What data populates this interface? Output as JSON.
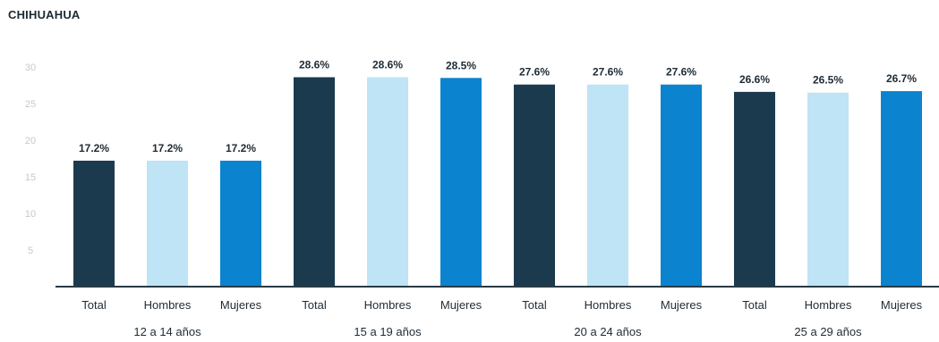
{
  "chart_data": {
    "type": "bar",
    "title": "CHIHUAHUA",
    "xlabel": "",
    "ylabel": "",
    "ylim": [
      0,
      30
    ],
    "yticks": [
      5,
      10,
      15,
      20,
      25,
      30
    ],
    "grid": false,
    "legend": "none",
    "groups": [
      {
        "label": "12 a 14 años",
        "bars": [
          {
            "category": "Total",
            "value": 17.2,
            "label": "17.2%"
          },
          {
            "category": "Hombres",
            "value": 17.2,
            "label": "17.2%"
          },
          {
            "category": "Mujeres",
            "value": 17.2,
            "label": "17.2%"
          }
        ]
      },
      {
        "label": "15 a 19 años",
        "bars": [
          {
            "category": "Total",
            "value": 28.6,
            "label": "28.6%"
          },
          {
            "category": "Hombres",
            "value": 28.6,
            "label": "28.6%"
          },
          {
            "category": "Mujeres",
            "value": 28.5,
            "label": "28.5%"
          }
        ]
      },
      {
        "label": "20 a 24 años",
        "bars": [
          {
            "category": "Total",
            "value": 27.6,
            "label": "27.6%"
          },
          {
            "category": "Hombres",
            "value": 27.6,
            "label": "27.6%"
          },
          {
            "category": "Mujeres",
            "value": 27.6,
            "label": "27.6%"
          }
        ]
      },
      {
        "label": "25 a 29 años",
        "bars": [
          {
            "category": "Total",
            "value": 26.6,
            "label": "26.6%"
          },
          {
            "category": "Hombres",
            "value": 26.5,
            "label": "26.5%"
          },
          {
            "category": "Mujeres",
            "value": 26.7,
            "label": "26.7%"
          }
        ]
      }
    ],
    "colors": {
      "Total": "#1c3a4d",
      "Hombres": "#bfe4f5",
      "Mujeres": "#0b83cf"
    }
  }
}
